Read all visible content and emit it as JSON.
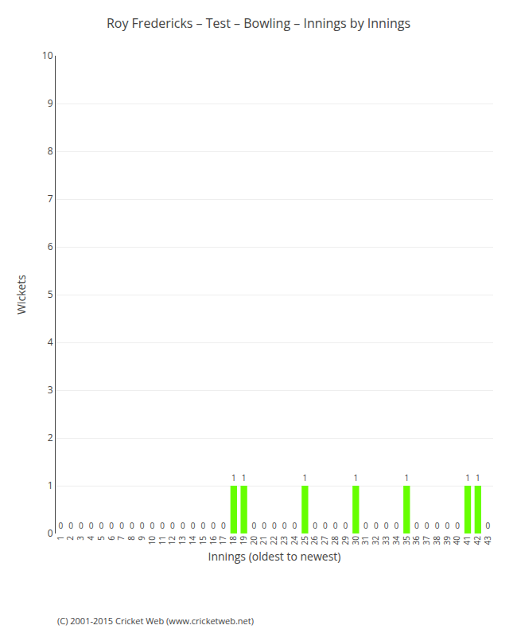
{
  "chart_data": {
    "type": "bar",
    "title": "Roy Fredericks – Test – Bowling – Innings by Innings",
    "xlabel": "Innings (oldest to newest)",
    "ylabel": "Wickets",
    "categories": [
      "1",
      "2",
      "3",
      "4",
      "5",
      "6",
      "7",
      "8",
      "9",
      "10",
      "11",
      "12",
      "13",
      "14",
      "15",
      "16",
      "17",
      "18",
      "19",
      "20",
      "21",
      "22",
      "23",
      "24",
      "25",
      "26",
      "27",
      "28",
      "29",
      "30",
      "31",
      "32",
      "33",
      "34",
      "35",
      "36",
      "37",
      "38",
      "39",
      "40",
      "41",
      "42",
      "43"
    ],
    "values": [
      0,
      0,
      0,
      0,
      0,
      0,
      0,
      0,
      0,
      0,
      0,
      0,
      0,
      0,
      0,
      0,
      0,
      1,
      1,
      0,
      0,
      0,
      0,
      0,
      1,
      0,
      0,
      0,
      0,
      1,
      0,
      0,
      0,
      0,
      1,
      0,
      0,
      0,
      0,
      0,
      1,
      1,
      0
    ],
    "color": "#66ff00",
    "ylim": [
      0,
      10
    ],
    "yticks": [
      0,
      1,
      2,
      3,
      4,
      5,
      6,
      7,
      8,
      9,
      10
    ],
    "grid": true,
    "data_labels": true,
    "annotations": [
      "(C) 2001-2015 Cricket Web (www.cricketweb.net)"
    ]
  }
}
